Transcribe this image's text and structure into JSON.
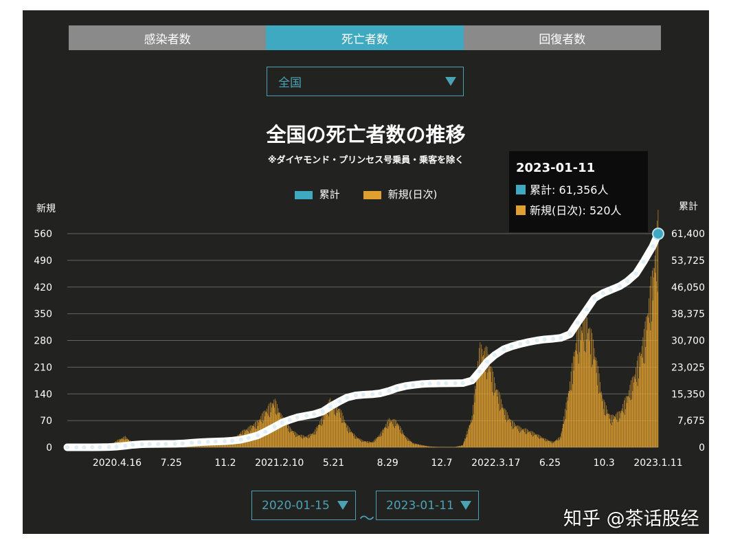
{
  "tabs": [
    {
      "label": "感染者数"
    },
    {
      "label": "死亡者数"
    },
    {
      "label": "回復者数"
    }
  ],
  "region_select": {
    "value": "全国"
  },
  "date_range": {
    "start": "2020-01-15",
    "end": "2023-01-11",
    "separator": "～"
  },
  "tooltip": {
    "date": "2023-01-11",
    "cumulative": "累計: 61,356人",
    "daily": "新規(日次): 520人"
  },
  "watermark": "知乎 @茶话股经",
  "chart_data": {
    "type": "bar+line",
    "title": "全国の死亡者数の推移",
    "subtitle": "※ダイヤモンド・プリンセス号乗員・乗客を除く",
    "left_axis_label": "新規",
    "right_axis_label": "累計",
    "left_ylim": [
      0,
      560
    ],
    "left_ticks": [
      "0",
      "70",
      "140",
      "210",
      "280",
      "350",
      "420",
      "490",
      "560"
    ],
    "right_ylim": [
      0,
      61400
    ],
    "right_ticks": [
      "0",
      "7,675",
      "15,350",
      "23,025",
      "30,700",
      "38,375",
      "46,050",
      "53,725",
      "61,400"
    ],
    "xlim": [
      "2020-01-15",
      "2023-01-11"
    ],
    "x_ticks": [
      {
        "date": "2020-04-16",
        "label": "2020.4.16"
      },
      {
        "date": "2020-07-25",
        "label": "7.25"
      },
      {
        "date": "2020-11-02",
        "label": "11.2"
      },
      {
        "date": "2021-02-10",
        "label": "2021.2.10"
      },
      {
        "date": "2021-05-21",
        "label": "5.21"
      },
      {
        "date": "2021-08-29",
        "label": "8.29"
      },
      {
        "date": "2021-12-07",
        "label": "12.7"
      },
      {
        "date": "2022-03-17",
        "label": "2022.3.17"
      },
      {
        "date": "2022-06-25",
        "label": "6.25"
      },
      {
        "date": "2022-10-03",
        "label": "10.3"
      },
      {
        "date": "2023-01-11",
        "label": "2023.1.11"
      }
    ],
    "grid": true,
    "legend_position": "top-center",
    "colors": {
      "cumulative": "#3fa9c1",
      "daily": "#e0a030",
      "line": "#ffffff",
      "background": "#222220"
    },
    "series": [
      {
        "name": "累計",
        "type": "line",
        "axis": "right"
      },
      {
        "name": "新規(日次)",
        "type": "bar",
        "axis": "left"
      }
    ],
    "dates": [
      "2020-01-15",
      "2020-02-01",
      "2020-02-15",
      "2020-03-01",
      "2020-03-15",
      "2020-04-01",
      "2020-04-15",
      "2020-05-01",
      "2020-05-15",
      "2020-06-01",
      "2020-06-15",
      "2020-07-01",
      "2020-07-15",
      "2020-08-01",
      "2020-08-15",
      "2020-09-01",
      "2020-09-15",
      "2020-10-01",
      "2020-10-15",
      "2020-11-01",
      "2020-11-15",
      "2020-12-01",
      "2020-12-15",
      "2021-01-01",
      "2021-01-15",
      "2021-02-01",
      "2021-02-15",
      "2021-03-01",
      "2021-03-15",
      "2021-04-01",
      "2021-04-15",
      "2021-05-01",
      "2021-05-15",
      "2021-06-01",
      "2021-06-15",
      "2021-07-01",
      "2021-07-15",
      "2021-08-01",
      "2021-08-15",
      "2021-09-01",
      "2021-09-15",
      "2021-10-01",
      "2021-10-15",
      "2021-11-01",
      "2021-11-15",
      "2021-12-01",
      "2021-12-15",
      "2022-01-01",
      "2022-01-15",
      "2022-02-01",
      "2022-02-15",
      "2022-03-01",
      "2022-03-15",
      "2022-04-01",
      "2022-04-15",
      "2022-05-01",
      "2022-05-15",
      "2022-06-01",
      "2022-06-15",
      "2022-07-01",
      "2022-07-15",
      "2022-08-01",
      "2022-08-15",
      "2022-09-01",
      "2022-09-15",
      "2022-10-01",
      "2022-10-15",
      "2022-11-01",
      "2022-11-15",
      "2022-12-01",
      "2022-12-15",
      "2023-01-01",
      "2023-01-11"
    ],
    "daily": [
      0,
      0,
      0,
      1,
      1,
      3,
      15,
      25,
      10,
      3,
      1,
      1,
      1,
      5,
      12,
      14,
      10,
      7,
      6,
      8,
      15,
      35,
      45,
      60,
      85,
      110,
      70,
      45,
      30,
      25,
      35,
      70,
      110,
      90,
      50,
      25,
      15,
      12,
      30,
      65,
      60,
      25,
      10,
      5,
      2,
      1,
      1,
      1,
      5,
      70,
      230,
      220,
      150,
      90,
      60,
      45,
      40,
      30,
      20,
      12,
      25,
      150,
      270,
      300,
      230,
      110,
      70,
      80,
      120,
      180,
      250,
      400,
      520
    ],
    "cumulative": [
      0,
      0,
      1,
      12,
      30,
      70,
      200,
      450,
      700,
      890,
      930,
      970,
      985,
      1010,
      1100,
      1300,
      1450,
      1570,
      1650,
      1760,
      1900,
      2200,
      2700,
      3450,
      4500,
      5900,
      7100,
      7900,
      8600,
      9100,
      9500,
      10300,
      11700,
      13200,
      14300,
      14900,
      15100,
      15250,
      15500,
      16200,
      17000,
      17600,
      17900,
      18200,
      18300,
      18350,
      18380,
      18400,
      18450,
      19200,
      21800,
      24600,
      26500,
      28200,
      29000,
      29700,
      30200,
      30700,
      31000,
      31200,
      31450,
      32500,
      35800,
      39600,
      42800,
      44300,
      45200,
      46300,
      47700,
      49900,
      53300,
      57800,
      61356
    ]
  }
}
